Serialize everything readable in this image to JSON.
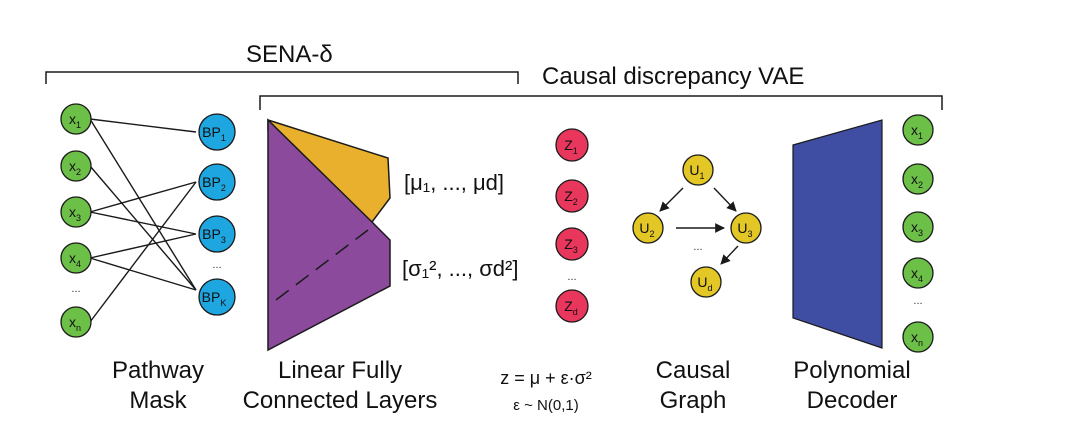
{
  "brackets": {
    "sena": "SENA-δ",
    "vae": "Causal discrepancy VAE"
  },
  "input_nodes": [
    {
      "base": "x",
      "sub": "1"
    },
    {
      "base": "x",
      "sub": "2"
    },
    {
      "base": "x",
      "sub": "3"
    },
    {
      "base": "x",
      "sub": "4"
    },
    {
      "base": "x",
      "sub": "n"
    }
  ],
  "input_ellipsis": "...",
  "pathway_nodes": [
    {
      "base": "BP",
      "sub": "1"
    },
    {
      "base": "BP",
      "sub": "2"
    },
    {
      "base": "BP",
      "sub": "3"
    },
    {
      "base": "BP",
      "sub": "K"
    }
  ],
  "pathway_ellipsis": "...",
  "encoder": {
    "mu_label": "[μ₁, ..., μd]",
    "sigma_label": "[σ₁², ..., σd²]"
  },
  "latent_nodes": [
    {
      "base": "Z",
      "sub": "1"
    },
    {
      "base": "Z",
      "sub": "2"
    },
    {
      "base": "Z",
      "sub": "3"
    },
    {
      "base": "Z",
      "sub": "d"
    }
  ],
  "latent_ellipsis": "...",
  "causal_nodes": [
    {
      "base": "U",
      "sub": "1"
    },
    {
      "base": "U",
      "sub": "2"
    },
    {
      "base": "U",
      "sub": "3"
    },
    {
      "base": "U",
      "sub": "d"
    }
  ],
  "causal_ellipsis": "...",
  "output_nodes": [
    {
      "base": "x",
      "sub": "1"
    },
    {
      "base": "x",
      "sub": "2"
    },
    {
      "base": "x",
      "sub": "3"
    },
    {
      "base": "x",
      "sub": "4"
    },
    {
      "base": "x",
      "sub": "n"
    }
  ],
  "output_ellipsis": "...",
  "captions": {
    "pathway": [
      "Pathway",
      "Mask"
    ],
    "linear": [
      "Linear Fully",
      "Connected Layers"
    ],
    "reparam": "z = μ + ε·σ²",
    "noise": "ε ~ N(0,1)",
    "causal": [
      "Causal",
      "Graph"
    ],
    "decoder": [
      "Polynomial",
      "Decoder"
    ]
  },
  "colors": {
    "input_fill": "#6cbf47",
    "pathway_fill": "#1ea6e0",
    "latent_fill": "#e8365c",
    "causal_fill": "#e2c726",
    "mu_fill": "#e8b02c",
    "sigma_fill": "#8b4a9c",
    "decoder_fill": "#3f4ea3",
    "line": "#1a1a1a"
  }
}
